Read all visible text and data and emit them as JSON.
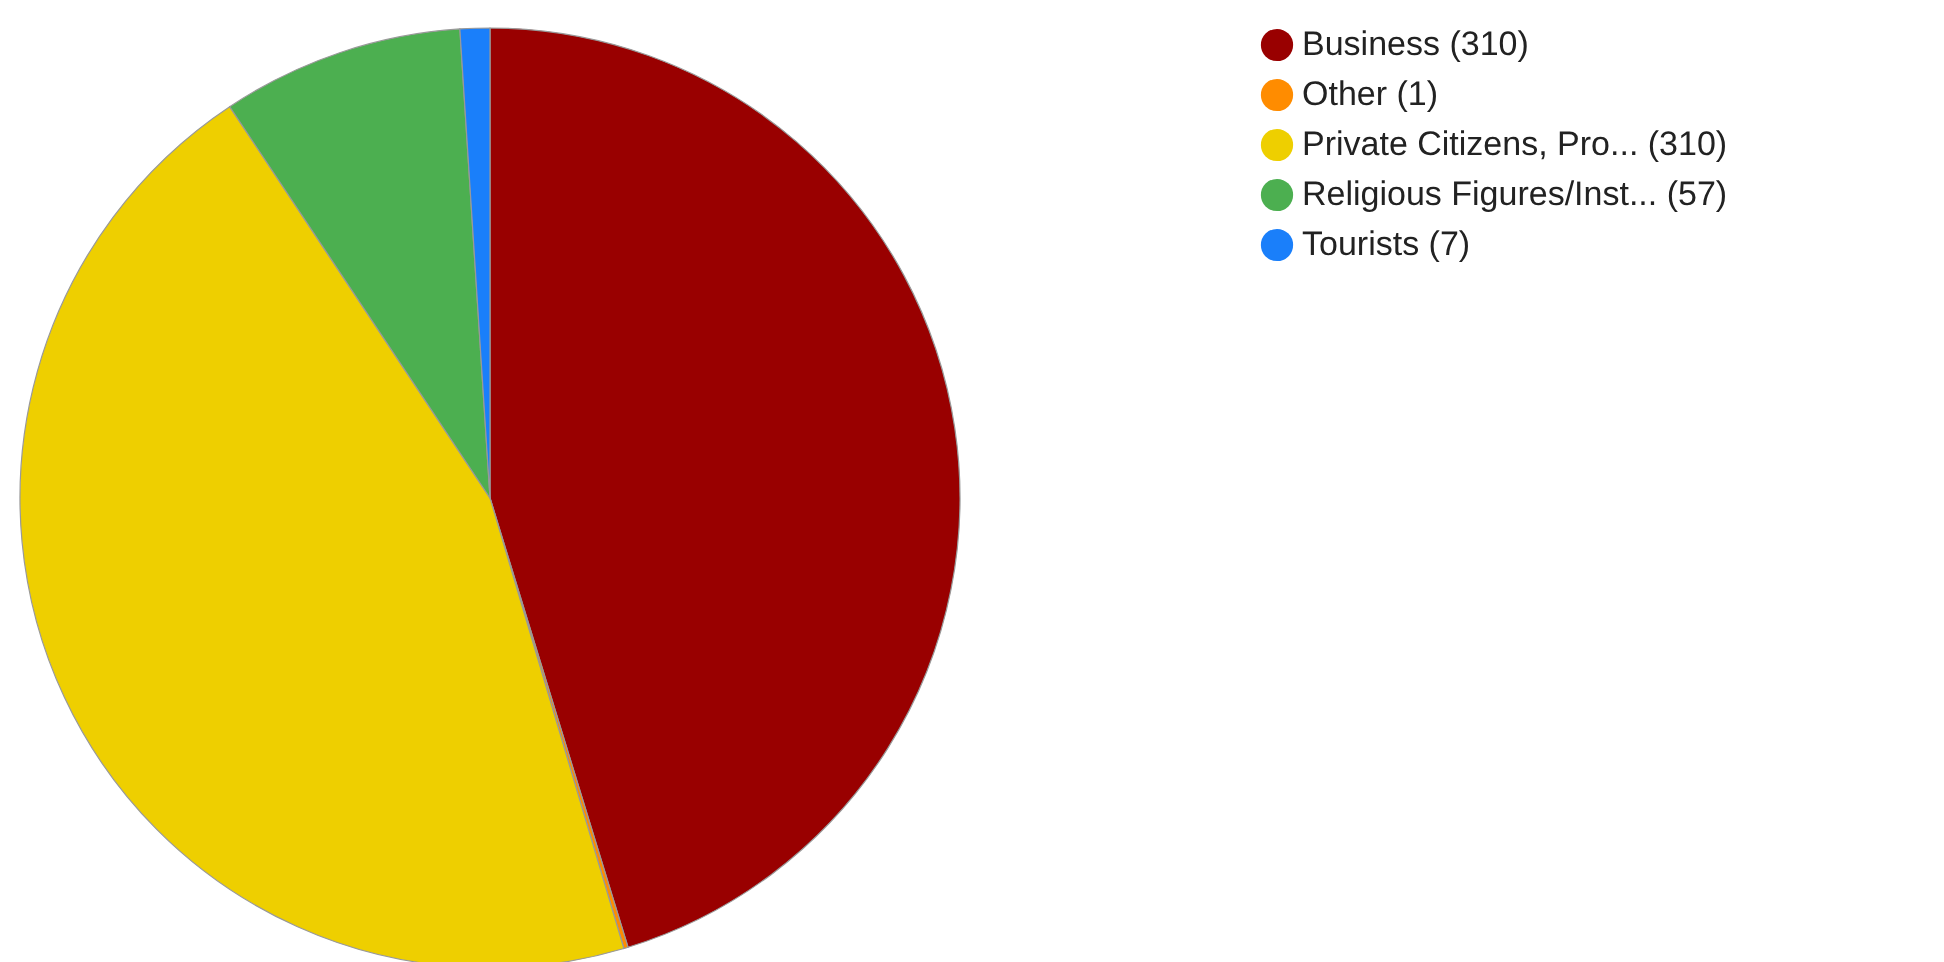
{
  "chart_data": {
    "type": "pie",
    "categories": [
      "Business (310)",
      "Other (1)",
      "Private Citizens, Pro... (310)",
      "Religious Figures/Inst... (57)",
      "Tourists (7)"
    ],
    "values": [
      310,
      1,
      310,
      57,
      7
    ],
    "colors": [
      "#990000",
      "#ff8c00",
      "#eecf00",
      "#4caf50",
      "#1a7ffa"
    ],
    "legend": "top right"
  }
}
